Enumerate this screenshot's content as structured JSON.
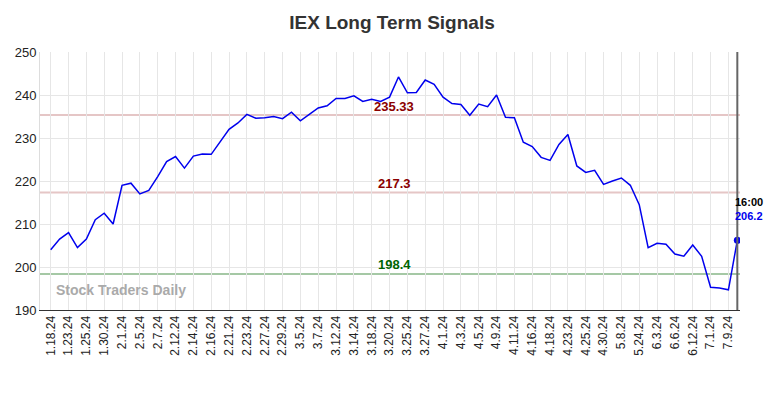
{
  "chart_data": {
    "type": "line",
    "title": "IEX Long Term Signals",
    "watermark": "Stock Traders Daily",
    "last_label": "16:00",
    "color": "#0000ee",
    "grid": true,
    "ylim": [
      190,
      250
    ],
    "yticks": [
      190,
      200,
      210,
      220,
      230,
      240,
      250
    ],
    "categories": [
      "1.18.24",
      null,
      "1.23.24",
      null,
      "1.25.24",
      null,
      "1.30.24",
      null,
      "2.1.24",
      null,
      "2.5.24",
      null,
      "2.7.24",
      null,
      "2.12.24",
      null,
      "2.14.24",
      null,
      "2.16.24",
      null,
      "2.21.24",
      null,
      "2.23.24",
      null,
      "2.27.24",
      null,
      "2.29.24",
      null,
      "3.5.24",
      null,
      "3.7.24",
      null,
      "3.12.24",
      null,
      "3.14.24",
      null,
      "3.18.24",
      null,
      "3.20.24",
      null,
      "3.25.24",
      null,
      "3.27.24",
      null,
      "4.1.24",
      null,
      "4.3.24",
      null,
      "4.5.24",
      null,
      "4.9.24",
      null,
      "4.11.24",
      null,
      "4.16.24",
      null,
      "4.18.24",
      null,
      "4.23.24",
      null,
      "4.25.24",
      null,
      "4.30.24",
      null,
      "5.8.24",
      null,
      "5.24.24",
      null,
      "6.3.24",
      null,
      "6.6.24",
      null,
      "6.12.24",
      null,
      "7.1.24",
      null,
      "7.9.24",
      null
    ],
    "values": [
      204,
      206.5,
      208,
      204.5,
      206.5,
      211,
      212.5,
      210,
      219,
      219.5,
      217,
      217.8,
      221,
      224.5,
      225.7,
      223,
      225.8,
      226.3,
      226.2,
      229,
      232,
      233.5,
      235.5,
      234.6,
      234.7,
      235,
      234.5,
      236,
      234,
      235.5,
      237,
      237.5,
      239.2,
      239.2,
      239.8,
      238.5,
      239,
      238.5,
      239.5,
      244.2,
      240.5,
      240.6,
      243.5,
      242.5,
      239.5,
      238,
      237.8,
      235.3,
      237.9,
      237.3,
      240,
      234.8,
      234.7,
      229,
      228,
      225.5,
      224.8,
      228.5,
      230.8,
      223.5,
      222,
      222.5,
      219.2,
      220,
      220.7,
      219,
      214.5,
      204.5,
      205.5,
      205.3,
      203,
      202.5,
      205.1,
      202.5,
      195.3,
      195.1,
      194.7,
      206.2
    ],
    "levels": [
      {
        "value": 235.33,
        "color": "#8b0000"
      },
      {
        "value": 217.3,
        "color": "#8b0000"
      },
      {
        "value": 198.4,
        "color": "#006400"
      }
    ]
  }
}
